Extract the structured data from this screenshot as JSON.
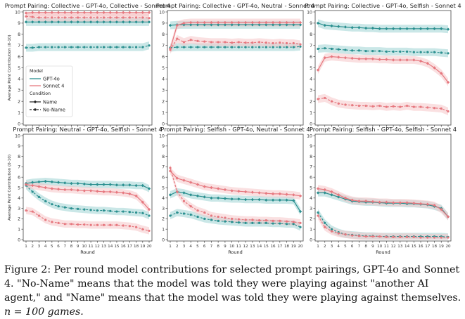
{
  "colors": {
    "gpt": "#2a8f8f",
    "sonnet": "#e6787f",
    "gpt_band": "#9fd4d4",
    "sonnet_band": "#f6c6c9"
  },
  "legend": {
    "model_title": "Model",
    "gpt_label": "GPT-4o",
    "sonnet_label": "Sonnet 4",
    "condition_title": "Condition",
    "name_label": "Name",
    "noname_label": "No-Name"
  },
  "caption": {
    "text": "Figure 2: Per round model contributions for selected prompt pairings, GPT-4o and Sonnet 4. \"No-Name\" means that the model was told they were playing against \"another AI agent,\" and \"Name\" means that the model was told they were playing against themselves.",
    "n_expr": "n = 100 games."
  },
  "chart_data": [
    {
      "type": "line",
      "title": "Prompt Pairing: Collective - GPT-4o, Collective - Sonnet 4",
      "xlabel": "",
      "ylabel": "Average Point Contribution (0-10)",
      "ylim": [
        0,
        10
      ],
      "yticks": [
        0,
        1,
        2,
        3,
        4,
        5,
        6,
        7,
        8,
        9,
        10
      ],
      "grid": false,
      "x": [
        1,
        2,
        3,
        4,
        5,
        6,
        7,
        8,
        9,
        10,
        11,
        12,
        13,
        14,
        15,
        16,
        17,
        18,
        19,
        20
      ],
      "series": [
        {
          "name": "GPT-4o",
          "condition": "Name",
          "values": [
            9.1,
            9.1,
            9.1,
            9.1,
            9.1,
            9.1,
            9.1,
            9.1,
            9.1,
            9.1,
            9.1,
            9.1,
            9.1,
            9.1,
            9.1,
            9.1,
            9.1,
            9.1,
            9.1,
            9.1
          ]
        },
        {
          "name": "GPT-4o",
          "condition": "No-Name",
          "values": [
            6.8,
            6.8,
            6.85,
            6.85,
            6.85,
            6.85,
            6.85,
            6.85,
            6.85,
            6.85,
            6.85,
            6.85,
            6.85,
            6.85,
            6.85,
            6.85,
            6.85,
            6.85,
            6.85,
            7.0
          ]
        },
        {
          "name": "Sonnet 4",
          "condition": "Name",
          "values": [
            9.9,
            9.95,
            9.95,
            9.95,
            9.95,
            9.95,
            9.95,
            9.95,
            9.95,
            9.95,
            9.95,
            9.95,
            9.95,
            9.95,
            9.95,
            9.95,
            9.95,
            9.95,
            9.95,
            9.95
          ]
        },
        {
          "name": "Sonnet 4",
          "condition": "No-Name",
          "values": [
            9.6,
            9.55,
            9.5,
            9.5,
            9.5,
            9.5,
            9.5,
            9.5,
            9.5,
            9.5,
            9.5,
            9.5,
            9.5,
            9.5,
            9.5,
            9.5,
            9.5,
            9.5,
            9.5,
            9.45
          ]
        }
      ]
    },
    {
      "type": "line",
      "title": "Prompt Pairing: Collective - GPT-4o, Neutral - Sonnet 4",
      "xlabel": "",
      "ylabel": "",
      "ylim": [
        0,
        10
      ],
      "yticks": [
        0,
        1,
        2,
        3,
        4,
        5,
        6,
        7,
        8,
        9,
        10
      ],
      "grid": false,
      "x": [
        1,
        2,
        3,
        4,
        5,
        6,
        7,
        8,
        9,
        10,
        11,
        12,
        13,
        14,
        15,
        16,
        17,
        18,
        19,
        20
      ],
      "series": [
        {
          "name": "GPT-4o",
          "condition": "Name",
          "values": [
            8.8,
            8.85,
            8.85,
            8.85,
            8.85,
            8.85,
            8.85,
            8.85,
            8.85,
            8.85,
            8.85,
            8.85,
            8.85,
            8.85,
            8.85,
            8.85,
            8.85,
            8.85,
            8.85,
            8.85
          ]
        },
        {
          "name": "GPT-4o",
          "condition": "No-Name",
          "values": [
            6.8,
            6.85,
            6.85,
            6.85,
            6.85,
            6.85,
            6.85,
            6.85,
            6.85,
            6.85,
            6.85,
            6.85,
            6.85,
            6.85,
            6.85,
            6.85,
            6.85,
            6.85,
            6.85,
            6.9
          ]
        },
        {
          "name": "Sonnet 4",
          "condition": "Name",
          "values": [
            6.7,
            8.8,
            9.0,
            9.05,
            9.05,
            9.05,
            9.05,
            9.05,
            9.05,
            9.05,
            9.05,
            9.05,
            9.05,
            9.05,
            9.05,
            9.05,
            9.05,
            9.05,
            9.05,
            9.05
          ]
        },
        {
          "name": "Sonnet 4",
          "condition": "No-Name",
          "values": [
            6.6,
            7.6,
            7.3,
            7.5,
            7.4,
            7.35,
            7.3,
            7.3,
            7.3,
            7.25,
            7.3,
            7.25,
            7.25,
            7.3,
            7.25,
            7.2,
            7.25,
            7.2,
            7.2,
            7.1
          ]
        }
      ]
    },
    {
      "type": "line",
      "title": "Prompt Pairing: Collective - GPT-4o, Selfish - Sonnet 4",
      "xlabel": "",
      "ylabel": "",
      "ylim": [
        0,
        10
      ],
      "yticks": [
        0,
        1,
        2,
        3,
        4,
        5,
        6,
        7,
        8,
        9,
        10
      ],
      "grid": false,
      "x": [
        1,
        2,
        3,
        4,
        5,
        6,
        7,
        8,
        9,
        10,
        11,
        12,
        13,
        14,
        15,
        16,
        17,
        18,
        19,
        20
      ],
      "series": [
        {
          "name": "GPT-4o",
          "condition": "Name",
          "values": [
            9.0,
            8.8,
            8.75,
            8.7,
            8.65,
            8.6,
            8.6,
            8.55,
            8.55,
            8.5,
            8.5,
            8.5,
            8.5,
            8.5,
            8.5,
            8.5,
            8.5,
            8.5,
            8.5,
            8.45
          ]
        },
        {
          "name": "GPT-4o",
          "condition": "No-Name",
          "values": [
            6.7,
            6.75,
            6.7,
            6.65,
            6.6,
            6.55,
            6.55,
            6.5,
            6.5,
            6.5,
            6.45,
            6.45,
            6.45,
            6.45,
            6.4,
            6.4,
            6.4,
            6.4,
            6.35,
            6.3
          ]
        },
        {
          "name": "Sonnet 4",
          "condition": "Name",
          "values": [
            4.8,
            5.9,
            6.0,
            5.95,
            5.9,
            5.85,
            5.8,
            5.8,
            5.8,
            5.75,
            5.75,
            5.7,
            5.7,
            5.7,
            5.7,
            5.6,
            5.4,
            5.0,
            4.5,
            3.7
          ]
        },
        {
          "name": "Sonnet 4",
          "condition": "No-Name",
          "values": [
            2.2,
            2.3,
            2.0,
            1.8,
            1.7,
            1.65,
            1.6,
            1.6,
            1.55,
            1.6,
            1.5,
            1.55,
            1.5,
            1.6,
            1.5,
            1.5,
            1.45,
            1.4,
            1.35,
            1.1
          ]
        }
      ]
    },
    {
      "type": "line",
      "title": "Prompt Pairing: Neutral - GPT-4o, Selfish - Sonnet 4",
      "xlabel": "Round",
      "ylabel": "Average Point Contribution (0-10)",
      "ylim": [
        0,
        10
      ],
      "yticks": [
        0,
        1,
        2,
        3,
        4,
        5,
        6,
        7,
        8,
        9,
        10
      ],
      "grid": false,
      "x": [
        1,
        2,
        3,
        4,
        5,
        6,
        7,
        8,
        9,
        10,
        11,
        12,
        13,
        14,
        15,
        16,
        17,
        18,
        19,
        20
      ],
      "series": [
        {
          "name": "GPT-4o",
          "condition": "Name",
          "values": [
            5.4,
            5.5,
            5.55,
            5.6,
            5.55,
            5.5,
            5.45,
            5.4,
            5.4,
            5.35,
            5.3,
            5.3,
            5.3,
            5.3,
            5.25,
            5.25,
            5.25,
            5.2,
            5.2,
            4.9
          ]
        },
        {
          "name": "GPT-4o",
          "condition": "No-Name",
          "values": [
            5.2,
            4.6,
            4.1,
            3.7,
            3.4,
            3.2,
            3.1,
            3.0,
            2.95,
            2.9,
            2.85,
            2.8,
            2.8,
            2.75,
            2.7,
            2.7,
            2.65,
            2.6,
            2.55,
            2.3
          ]
        },
        {
          "name": "Sonnet 4",
          "condition": "Name",
          "values": [
            5.3,
            5.2,
            5.1,
            5.0,
            4.9,
            4.85,
            4.8,
            4.8,
            4.75,
            4.7,
            4.7,
            4.65,
            4.6,
            4.6,
            4.55,
            4.5,
            4.4,
            4.2,
            3.6,
            2.9
          ]
        },
        {
          "name": "Sonnet 4",
          "condition": "No-Name",
          "values": [
            2.8,
            2.7,
            2.3,
            1.9,
            1.7,
            1.6,
            1.5,
            1.5,
            1.45,
            1.45,
            1.4,
            1.4,
            1.4,
            1.4,
            1.4,
            1.35,
            1.3,
            1.2,
            1.0,
            0.85
          ]
        }
      ]
    },
    {
      "type": "line",
      "title": "Prompt Pairing: Selfish - GPT-4o, Neutral - Sonnet 4",
      "xlabel": "Round",
      "ylabel": "",
      "ylim": [
        0,
        10
      ],
      "yticks": [
        0,
        1,
        2,
        3,
        4,
        5,
        6,
        7,
        8,
        9,
        10
      ],
      "grid": false,
      "x": [
        1,
        2,
        3,
        4,
        5,
        6,
        7,
        8,
        9,
        10,
        11,
        12,
        13,
        14,
        15,
        16,
        17,
        18,
        19,
        20
      ],
      "series": [
        {
          "name": "GPT-4o",
          "condition": "Name",
          "values": [
            4.3,
            4.6,
            4.5,
            4.3,
            4.2,
            4.1,
            4.0,
            4.0,
            3.95,
            3.9,
            3.9,
            3.85,
            3.85,
            3.85,
            3.8,
            3.8,
            3.8,
            3.8,
            3.75,
            2.7
          ]
        },
        {
          "name": "GPT-4o",
          "condition": "No-Name",
          "values": [
            2.3,
            2.6,
            2.5,
            2.4,
            2.2,
            2.0,
            1.9,
            1.8,
            1.75,
            1.7,
            1.65,
            1.6,
            1.6,
            1.6,
            1.6,
            1.55,
            1.55,
            1.5,
            1.5,
            1.2
          ]
        },
        {
          "name": "Sonnet 4",
          "condition": "Name",
          "values": [
            6.6,
            5.9,
            5.7,
            5.5,
            5.3,
            5.1,
            5.0,
            4.9,
            4.8,
            4.7,
            4.65,
            4.6,
            4.55,
            4.5,
            4.45,
            4.4,
            4.4,
            4.35,
            4.3,
            4.2
          ]
        },
        {
          "name": "Sonnet 4",
          "condition": "No-Name",
          "values": [
            6.9,
            4.6,
            3.7,
            3.2,
            2.8,
            2.6,
            2.3,
            2.2,
            2.1,
            2.0,
            1.95,
            1.9,
            1.9,
            1.85,
            1.85,
            1.8,
            1.8,
            1.75,
            1.7,
            1.6
          ]
        }
      ]
    },
    {
      "type": "line",
      "title": "Prompt Pairing: Selfish - GPT-4o, Selfish - Sonnet 4",
      "xlabel": "Round",
      "ylabel": "",
      "ylim": [
        0,
        10
      ],
      "yticks": [
        0,
        1,
        2,
        3,
        4,
        5,
        6,
        7,
        8,
        9,
        10
      ],
      "grid": false,
      "x": [
        1,
        2,
        3,
        4,
        5,
        6,
        7,
        8,
        9,
        10,
        11,
        12,
        13,
        14,
        15,
        16,
        17,
        18,
        19,
        20
      ],
      "series": [
        {
          "name": "GPT-4o",
          "condition": "Name",
          "values": [
            4.5,
            4.5,
            4.3,
            4.1,
            3.9,
            3.7,
            3.65,
            3.6,
            3.6,
            3.55,
            3.5,
            3.5,
            3.5,
            3.45,
            3.45,
            3.4,
            3.35,
            3.2,
            3.0,
            2.2
          ]
        },
        {
          "name": "GPT-4o",
          "condition": "No-Name",
          "values": [
            2.6,
            1.6,
            1.0,
            0.7,
            0.5,
            0.45,
            0.4,
            0.35,
            0.35,
            0.3,
            0.3,
            0.3,
            0.3,
            0.3,
            0.3,
            0.3,
            0.3,
            0.3,
            0.3,
            0.25
          ]
        },
        {
          "name": "Sonnet 4",
          "condition": "Name",
          "values": [
            4.9,
            4.8,
            4.6,
            4.3,
            4.0,
            3.8,
            3.7,
            3.7,
            3.65,
            3.6,
            3.6,
            3.55,
            3.55,
            3.55,
            3.5,
            3.45,
            3.4,
            3.3,
            2.9,
            2.2
          ]
        },
        {
          "name": "Sonnet 4",
          "condition": "No-Name",
          "values": [
            2.3,
            1.2,
            0.8,
            0.6,
            0.5,
            0.4,
            0.35,
            0.3,
            0.3,
            0.3,
            0.25,
            0.25,
            0.25,
            0.25,
            0.25,
            0.2,
            0.2,
            0.2,
            0.2,
            0.2
          ]
        }
      ]
    }
  ]
}
